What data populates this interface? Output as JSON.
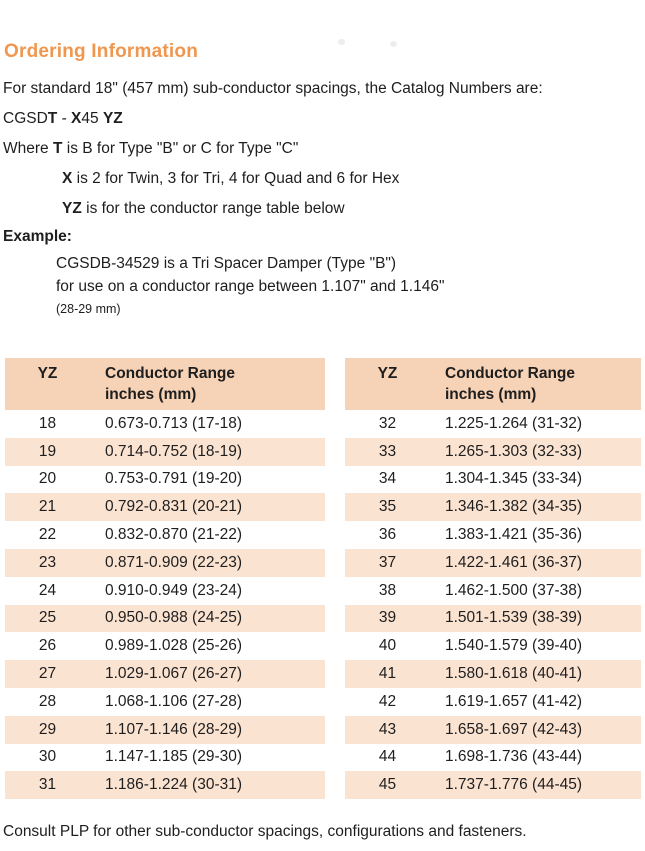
{
  "heading": "Ordering Information",
  "accent_color": "#f0974f",
  "table_header_color": "#f6d2b6",
  "table_stripe_color": "#fbe3d2",
  "intro": "For standard 18\" (457 mm) sub-conductor spacings, the Catalog Numbers are:",
  "catalog": {
    "prefix": "CGSD",
    "t": "T",
    "sep": " - ",
    "x": "X",
    "mid": "45 ",
    "yz": "YZ"
  },
  "where": {
    "pre": "Where ",
    "bold": "T",
    "post": " is B for Type \"B\" or C for Type \"C\""
  },
  "xline": {
    "bold": "X",
    "post": " is 2 for Twin, 3 for Tri, 4 for Quad and 6 for Hex"
  },
  "yzline": {
    "bold": "YZ",
    "post": " is for the conductor range table below"
  },
  "example": {
    "label": "Example:",
    "line1": "CGSDB-34529 is a Tri Spacer Damper (Type \"B\")",
    "line2": "for use on a conductor range between 1.107\" and 1.146\"",
    "line3": "(28-29 mm)"
  },
  "tables": [
    {
      "header": {
        "yz": "YZ",
        "range1": "Conductor Range",
        "range2": "inches (mm)"
      },
      "rows": [
        {
          "yz": "18",
          "range": "0.673-0.713 (17-18)"
        },
        {
          "yz": "19",
          "range": "0.714-0.752 (18-19)"
        },
        {
          "yz": "20",
          "range": "0.753-0.791 (19-20)"
        },
        {
          "yz": "21",
          "range": "0.792-0.831 (20-21)"
        },
        {
          "yz": "22",
          "range": "0.832-0.870 (21-22)"
        },
        {
          "yz": "23",
          "range": "0.871-0.909 (22-23)"
        },
        {
          "yz": "24",
          "range": "0.910-0.949 (23-24)"
        },
        {
          "yz": "25",
          "range": "0.950-0.988 (24-25)"
        },
        {
          "yz": "26",
          "range": "0.989-1.028 (25-26)"
        },
        {
          "yz": "27",
          "range": "1.029-1.067 (26-27)"
        },
        {
          "yz": "28",
          "range": "1.068-1.106 (27-28)"
        },
        {
          "yz": "29",
          "range": "1.107-1.146 (28-29)"
        },
        {
          "yz": "30",
          "range": "1.147-1.185 (29-30)"
        },
        {
          "yz": "31",
          "range": "1.186-1.224 (30-31)"
        }
      ]
    },
    {
      "header": {
        "yz": "YZ",
        "range1": "Conductor Range",
        "range2": "inches (mm)"
      },
      "rows": [
        {
          "yz": "32",
          "range": "1.225-1.264 (31-32)"
        },
        {
          "yz": "33",
          "range": "1.265-1.303 (32-33)"
        },
        {
          "yz": "34",
          "range": "1.304-1.345 (33-34)"
        },
        {
          "yz": "35",
          "range": "1.346-1.382 (34-35)"
        },
        {
          "yz": "36",
          "range": "1.383-1.421 (35-36)"
        },
        {
          "yz": "37",
          "range": "1.422-1.461 (36-37)"
        },
        {
          "yz": "38",
          "range": "1.462-1.500 (37-38)"
        },
        {
          "yz": "39",
          "range": "1.501-1.539 (38-39)"
        },
        {
          "yz": "40",
          "range": "1.540-1.579 (39-40)"
        },
        {
          "yz": "41",
          "range": "1.580-1.618 (40-41)"
        },
        {
          "yz": "42",
          "range": "1.619-1.657 (41-42)"
        },
        {
          "yz": "43",
          "range": "1.658-1.697 (42-43)"
        },
        {
          "yz": "44",
          "range": "1.698-1.736 (43-44)"
        },
        {
          "yz": "45",
          "range": "1.737-1.776 (44-45)"
        }
      ]
    }
  ],
  "footer": "Consult PLP for other sub-conductor spacings, configurations and fasteners."
}
